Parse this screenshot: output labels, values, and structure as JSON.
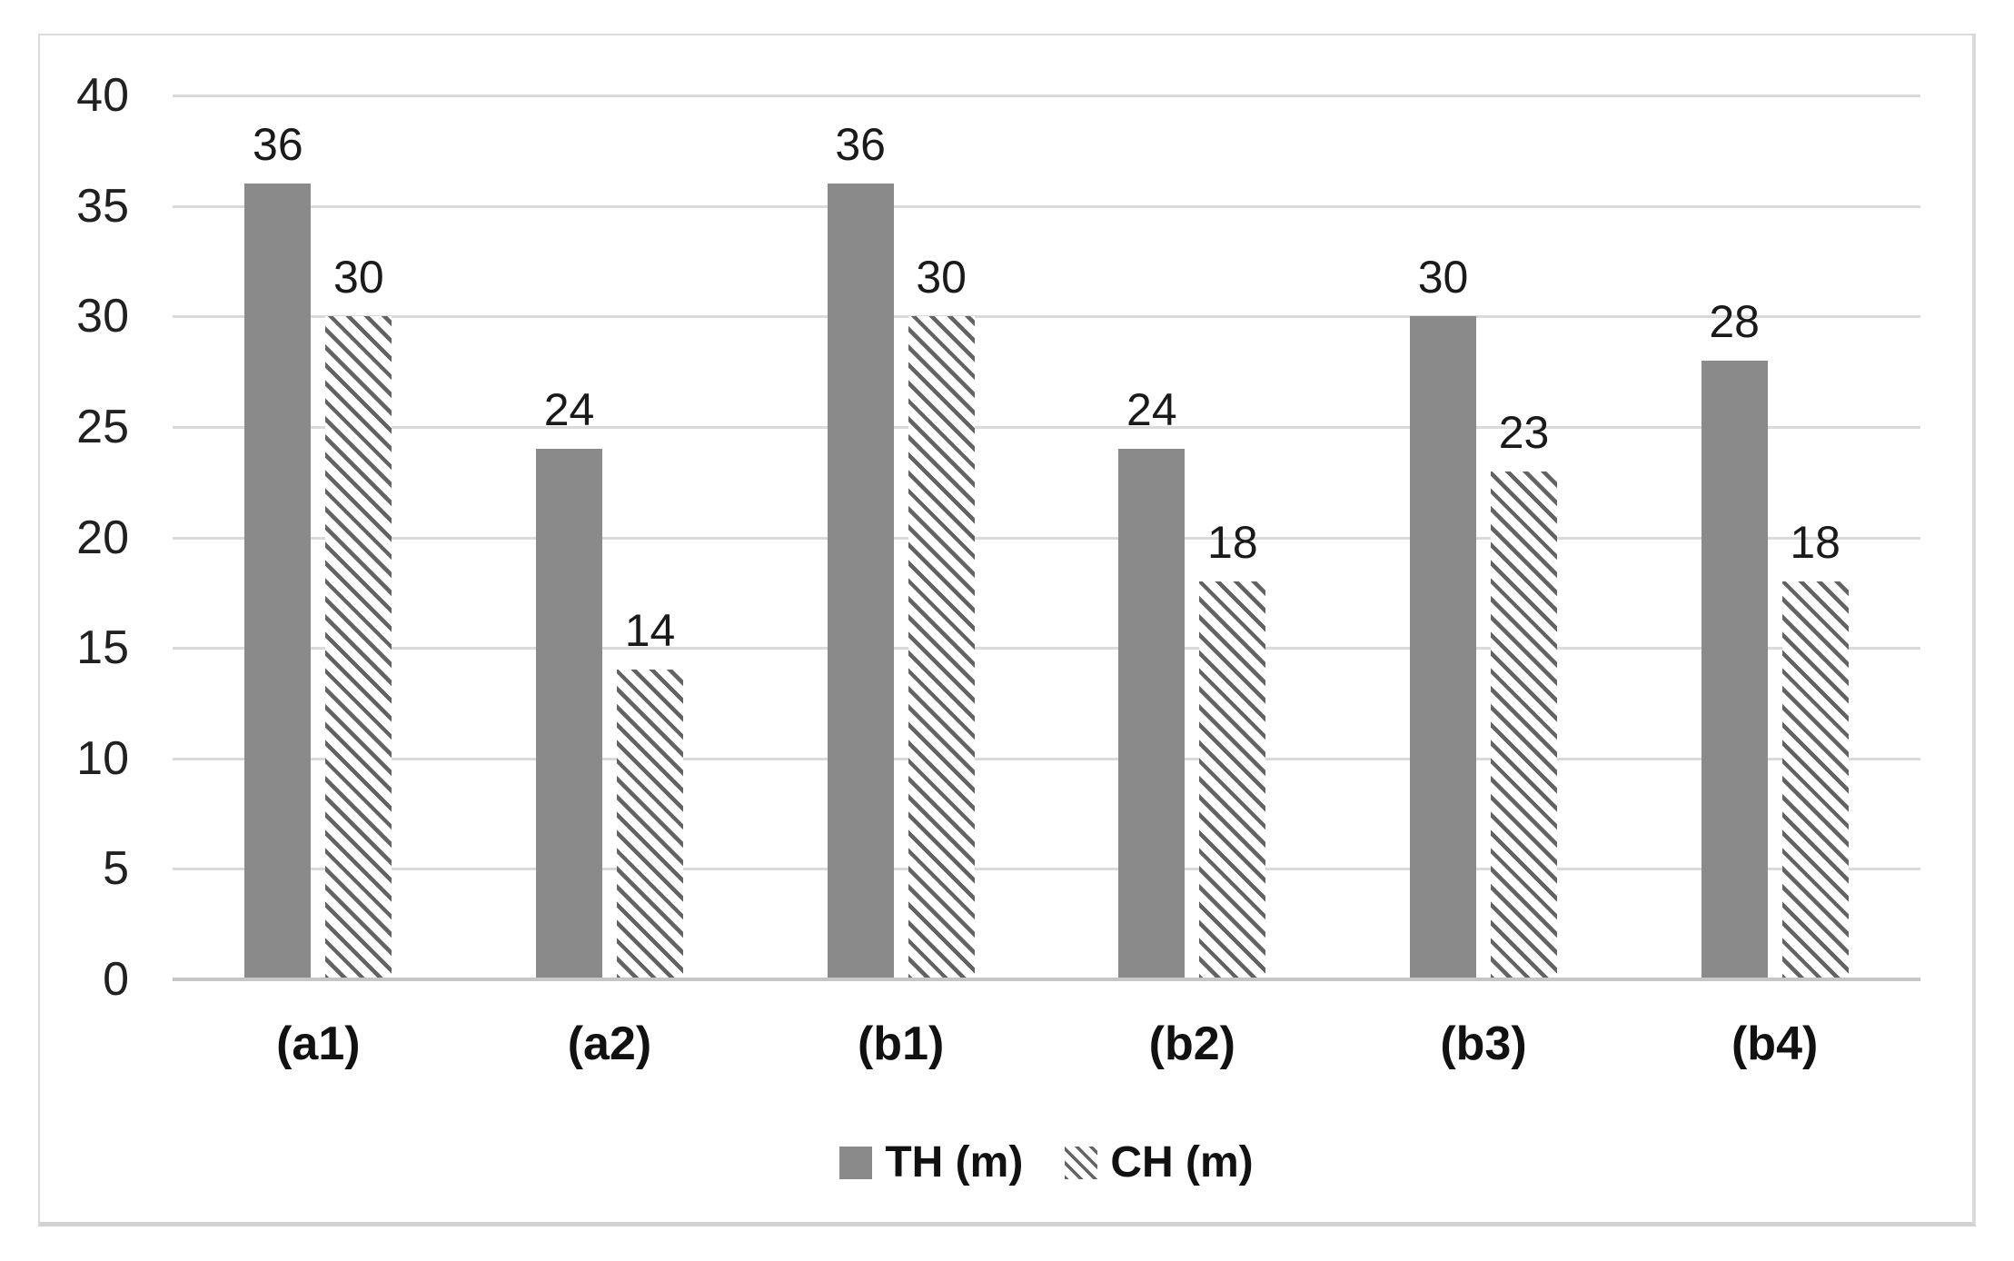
{
  "figure": {
    "background": "#ffffff",
    "frame_border_color": "#dadada"
  },
  "colors": {
    "solid_bar": "#8a8a8a",
    "hatch_stroke": "#636363",
    "hatch_background": "#ffffff",
    "gridline": "#dadada",
    "axis_line": "#c6c6c6",
    "text": "#1a1a1a"
  },
  "chart_data": {
    "type": "bar",
    "title": "",
    "xlabel": "",
    "ylabel": "",
    "categories": [
      "(a1)",
      "(a2)",
      "(b1)",
      "(b2)",
      "(b3)",
      "(b4)"
    ],
    "series": [
      {
        "name": "TH (m)",
        "fill": "solid",
        "values": [
          36,
          24,
          36,
          24,
          30,
          28
        ]
      },
      {
        "name": "CH (m)",
        "fill": "hatch",
        "values": [
          30,
          14,
          30,
          18,
          23,
          18
        ]
      }
    ],
    "ylim": [
      0,
      40
    ],
    "yticks": [
      0,
      5,
      10,
      15,
      20,
      25,
      30,
      35,
      40
    ],
    "grid": true,
    "data_labels": true,
    "legend_position": "bottom",
    "legend": [
      {
        "label": "TH (m)",
        "marker": "solid-gray-square-icon"
      },
      {
        "label": "CH (m)",
        "marker": "diagonal-hatch-square-icon"
      }
    ]
  }
}
